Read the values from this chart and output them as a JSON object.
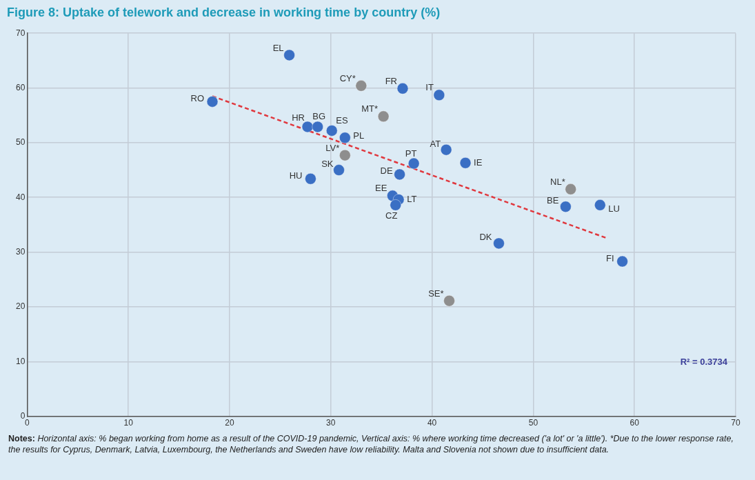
{
  "chart_data": {
    "type": "scatter",
    "title": "Figure 8: Uptake of telework and decrease in working time by country (%)",
    "xlim": [
      0,
      70
    ],
    "xticks": [
      0,
      10,
      20,
      30,
      40,
      50,
      60,
      70
    ],
    "ylim": [
      0,
      70
    ],
    "yticks": [
      0,
      10,
      20,
      30,
      40,
      50,
      60,
      70
    ],
    "grid": true,
    "legend": false,
    "marker": "circle",
    "series": [
      {
        "color": "#3a6fc4",
        "x": [
          25.9,
          37.1,
          40.7,
          18.3,
          27.7,
          28.7,
          30.1,
          31.4,
          30.8,
          28.0,
          41.4,
          43.3,
          38.2,
          36.8,
          36.1,
          36.7,
          36.4,
          53.2,
          56.6,
          46.6,
          58.8
        ],
        "values": [
          66.0,
          59.9,
          58.7,
          57.5,
          52.9,
          52.9,
          52.2,
          50.9,
          45.0,
          43.4,
          48.7,
          46.3,
          46.2,
          44.2,
          40.3,
          39.6,
          38.6,
          38.3,
          38.6,
          31.6,
          28.3
        ]
      },
      {
        "color": "#8e8e8e",
        "x": [
          33.0,
          35.2,
          31.4,
          53.7,
          41.7
        ],
        "values": [
          60.4,
          54.8,
          47.7,
          41.5,
          21.1
        ]
      },
      {
        "type": "line",
        "color": "#e0383e",
        "line_style": "dashed",
        "marker": "none",
        "x": [
          18.3,
          57.2
        ],
        "values": [
          58.5,
          32.6
        ]
      }
    ],
    "annotations": [
      {
        "text": "EL",
        "x": 25.9,
        "y": 66.0
      },
      {
        "text": "FR",
        "x": 37.1,
        "y": 59.9
      },
      {
        "text": "IT",
        "x": 40.7,
        "y": 58.7
      },
      {
        "text": "RO",
        "x": 18.3,
        "y": 57.5
      },
      {
        "text": "HR",
        "x": 27.7,
        "y": 52.9
      },
      {
        "text": "BG",
        "x": 28.7,
        "y": 52.9
      },
      {
        "text": "ES",
        "x": 30.1,
        "y": 52.2
      },
      {
        "text": "PL",
        "x": 31.4,
        "y": 50.9
      },
      {
        "text": "SK",
        "x": 30.8,
        "y": 45.0
      },
      {
        "text": "HU",
        "x": 28.0,
        "y": 43.4
      },
      {
        "text": "AT",
        "x": 41.4,
        "y": 48.7
      },
      {
        "text": "IE",
        "x": 43.3,
        "y": 46.3
      },
      {
        "text": "PT",
        "x": 38.2,
        "y": 46.2
      },
      {
        "text": "DE",
        "x": 36.8,
        "y": 44.2
      },
      {
        "text": "EE",
        "x": 36.1,
        "y": 40.3
      },
      {
        "text": "LT",
        "x": 36.7,
        "y": 39.6
      },
      {
        "text": "CZ",
        "x": 36.4,
        "y": 38.6
      },
      {
        "text": "BE",
        "x": 53.2,
        "y": 38.3
      },
      {
        "text": "LU",
        "x": 56.6,
        "y": 38.6
      },
      {
        "text": "DK",
        "x": 46.6,
        "y": 31.6
      },
      {
        "text": "FI",
        "x": 58.8,
        "y": 28.3
      },
      {
        "text": "CY*",
        "x": 33.0,
        "y": 60.4
      },
      {
        "text": "MT*",
        "x": 35.2,
        "y": 54.8
      },
      {
        "text": "LV*",
        "x": 31.4,
        "y": 47.7
      },
      {
        "text": "NL*",
        "x": 53.7,
        "y": 41.5
      },
      {
        "text": "SE*",
        "x": 41.7,
        "y": 21.1
      },
      "R² = 0.3734",
      "Notes: Horizontal axis: % began working from home as a result of the COVID-19 pandemic, Vertical axis: % where working time decreased ('a lot' or 'a little'). *Due to the lower response rate, the results for Cyprus, Denmark, Latvia, Luxembourg, the Netherlands and Sweden have low reliability. Malta and Slovenia not shown due to insufficient data."
    ]
  }
}
